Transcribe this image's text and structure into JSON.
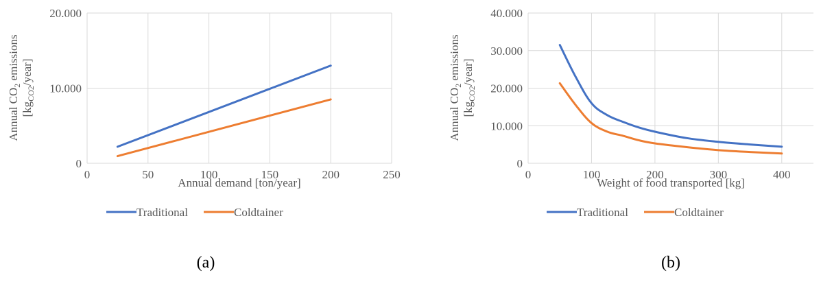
{
  "chart_data": [
    {
      "type": "line",
      "panel_label": "(a)",
      "xlabel": "Annual demand [ton/year]",
      "ylabel_line1_pre": "Annual CO",
      "ylabel_line1_sub": "2",
      "ylabel_line1_post": " emissions",
      "ylabel_line2_pre": "[kg",
      "ylabel_line2_sub": "CO2",
      "ylabel_line2_post": "/year]",
      "xlim": [
        0,
        250
      ],
      "ylim": [
        0,
        20000
      ],
      "xticks": [
        0,
        50,
        100,
        150,
        200,
        250
      ],
      "xtick_labels": [
        "0",
        "50",
        "100",
        "150",
        "200",
        "250"
      ],
      "yticks": [
        0,
        10000,
        20000
      ],
      "ytick_labels": [
        "0",
        "10.000",
        "20.000"
      ],
      "grid": true,
      "legend_position": "bottom",
      "series": [
        {
          "name": "Traditional",
          "color": "#4472C4",
          "x": [
            25,
            200
          ],
          "y": [
            2200,
            13000
          ]
        },
        {
          "name": "Coldtainer",
          "color": "#ED7D31",
          "x": [
            25,
            200
          ],
          "y": [
            950,
            8500
          ]
        }
      ]
    },
    {
      "type": "line",
      "panel_label": "(b)",
      "xlabel": "Weight of food transported [kg]",
      "ylabel_line1_pre": "Annual CO",
      "ylabel_line1_sub": "2",
      "ylabel_line1_post": " emissions",
      "ylabel_line2_pre": "[kg",
      "ylabel_line2_sub": "CO2",
      "ylabel_line2_post": "/year]",
      "xlim": [
        0,
        450
      ],
      "ylim": [
        0,
        40000
      ],
      "xticks": [
        0,
        100,
        200,
        300,
        400
      ],
      "xtick_labels": [
        "0",
        "100",
        "200",
        "300",
        "400"
      ],
      "yticks": [
        0,
        10000,
        20000,
        30000,
        40000
      ],
      "ytick_labels": [
        "0",
        "10.000",
        "20.000",
        "30.000",
        "40.000"
      ],
      "grid": true,
      "legend_position": "bottom",
      "series": [
        {
          "name": "Traditional",
          "color": "#4472C4",
          "x": [
            50,
            75,
            100,
            125,
            150,
            175,
            200,
            250,
            300,
            350,
            400
          ],
          "y": [
            31500,
            23000,
            16000,
            12800,
            11000,
            9500,
            8400,
            6700,
            5700,
            5000,
            4400
          ]
        },
        {
          "name": "Coldtainer",
          "color": "#ED7D31",
          "x": [
            50,
            75,
            100,
            125,
            150,
            175,
            200,
            250,
            300,
            350,
            400
          ],
          "y": [
            21300,
            15500,
            10700,
            8400,
            7300,
            6100,
            5300,
            4300,
            3500,
            3000,
            2600
          ]
        }
      ]
    }
  ]
}
